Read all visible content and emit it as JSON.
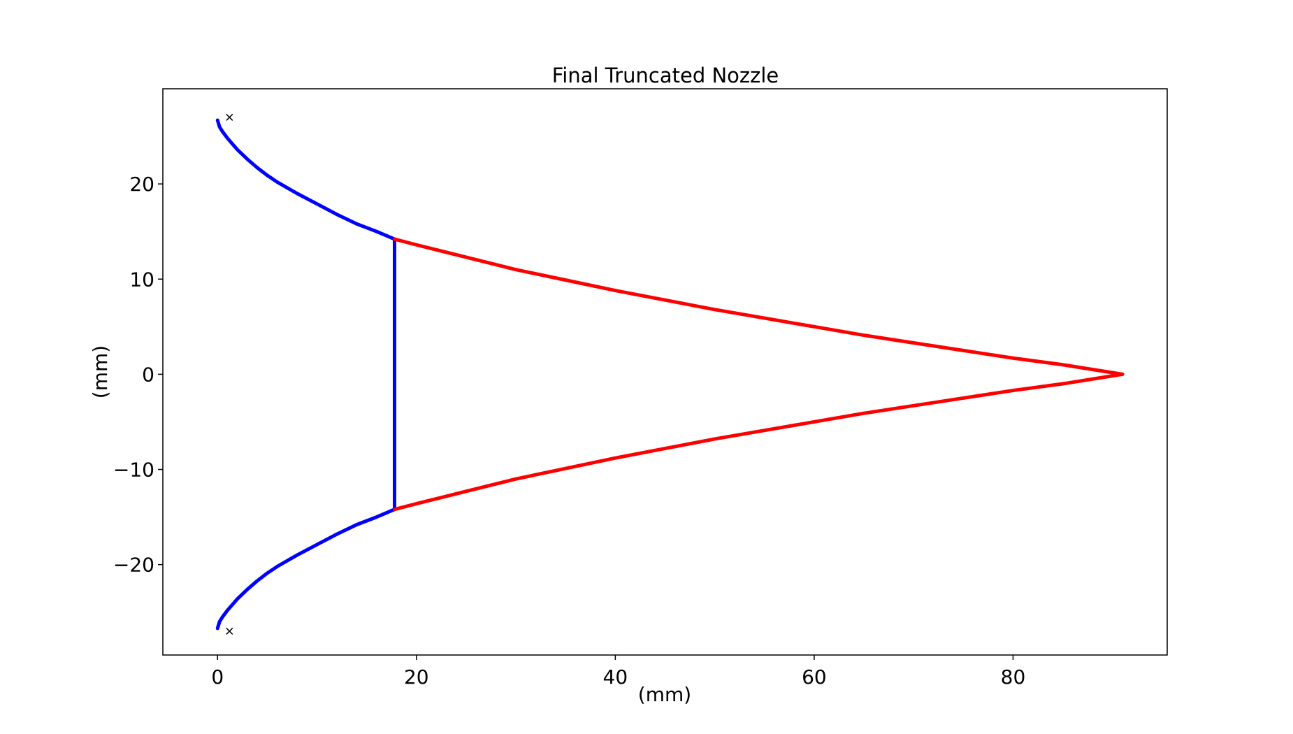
{
  "chart_data": {
    "type": "line",
    "title": "Final Truncated Nozzle",
    "xlabel": "(mm)",
    "ylabel": "(mm)",
    "xlim": [
      -5.5,
      95.5
    ],
    "ylim": [
      -29.5,
      30
    ],
    "xticks": [
      0,
      20,
      40,
      60,
      80
    ],
    "yticks": [
      -20,
      -10,
      0,
      10,
      20
    ],
    "xtick_labels": [
      "0",
      "20",
      "40",
      "60",
      "80"
    ],
    "ytick_labels": [
      "−20",
      "−10",
      "0",
      "10",
      "20"
    ],
    "grid": false,
    "series": [
      {
        "color": "#0000ff",
        "x": [
          0,
          0.2,
          0.5,
          1,
          1.5,
          2,
          3,
          4,
          5,
          6,
          8,
          10,
          12,
          14,
          16,
          17.8
        ],
        "y": [
          26.7,
          26.0,
          25.5,
          24.8,
          24.2,
          23.6,
          22.6,
          21.7,
          20.9,
          20.2,
          19.0,
          17.9,
          16.8,
          15.8,
          15.0,
          14.2
        ]
      },
      {
        "color": "#0000ff",
        "x": [
          0,
          0.2,
          0.5,
          1,
          1.5,
          2,
          3,
          4,
          5,
          6,
          8,
          10,
          12,
          14,
          16,
          17.8
        ],
        "y": [
          -26.7,
          -26.0,
          -25.5,
          -24.8,
          -24.2,
          -23.6,
          -22.6,
          -21.7,
          -20.9,
          -20.2,
          -19.0,
          -17.9,
          -16.8,
          -15.8,
          -15.0,
          -14.2
        ]
      },
      {
        "color": "#0000ff",
        "x": [
          17.8,
          17.8
        ],
        "y": [
          14.2,
          -14.2
        ]
      },
      {
        "color": "#ff0000",
        "x": [
          17.8,
          20,
          25,
          30,
          35,
          40,
          45,
          50,
          55,
          60,
          65,
          70,
          75,
          80,
          85,
          91
        ],
        "y": [
          14.2,
          13.6,
          12.3,
          11.0,
          9.9,
          8.8,
          7.8,
          6.8,
          5.9,
          5.0,
          4.1,
          3.3,
          2.5,
          1.7,
          1.0,
          0.0
        ]
      },
      {
        "color": "#ff0000",
        "x": [
          17.8,
          20,
          25,
          30,
          35,
          40,
          45,
          50,
          55,
          60,
          65,
          70,
          75,
          80,
          85,
          91
        ],
        "y": [
          -14.2,
          -13.6,
          -12.3,
          -11.0,
          -9.9,
          -8.8,
          -7.8,
          -6.8,
          -5.9,
          -5.0,
          -4.1,
          -3.3,
          -2.5,
          -1.7,
          -1.0,
          0.0
        ]
      }
    ],
    "markers": [
      {
        "x": 1.2,
        "y": 27.0,
        "symbol": "x",
        "color": "#000000"
      },
      {
        "x": 1.2,
        "y": -27.0,
        "symbol": "x",
        "color": "#000000"
      }
    ]
  }
}
